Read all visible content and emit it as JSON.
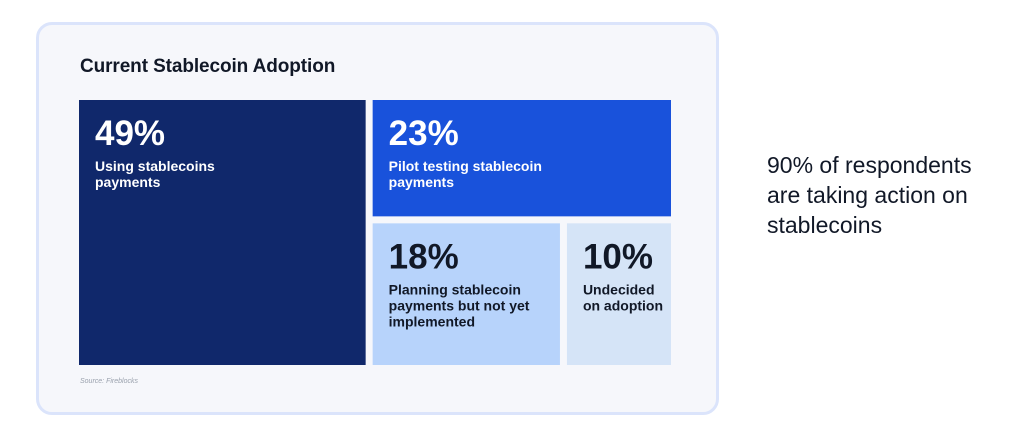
{
  "chart_data": {
    "type": "treemap",
    "title": "Current Stablecoin Adoption",
    "unit": "%",
    "categories": [
      "Using stablecoins payments",
      "Pilot testing stablecoin payments",
      "Planning stablecoin payments but not yet implemented",
      "Undecided on adoption"
    ],
    "values": [
      49,
      23,
      18,
      10
    ],
    "segments": [
      {
        "value": 49,
        "display": "49%",
        "label_lines": [
          "Using stablecoins",
          "payments"
        ],
        "color": "#10286b",
        "text_color": "#ffffff"
      },
      {
        "value": 23,
        "display": "23%",
        "label_lines": [
          "Pilot testing stablecoin",
          "payments"
        ],
        "color": "#1952db",
        "text_color": "#ffffff"
      },
      {
        "value": 18,
        "display": "18%",
        "label_lines": [
          "Planning stablecoin",
          "payments but not yet",
          "implemented"
        ],
        "color": "#b7d3fb",
        "text_color": "#111827"
      },
      {
        "value": 10,
        "display": "10%",
        "label_lines": [
          "Undecided",
          "on adoption"
        ],
        "color": "#d5e4f7",
        "text_color": "#111827"
      }
    ]
  },
  "source": "Source: Fireblocks",
  "callout": "90% of respondents are taking action on stablecoins"
}
